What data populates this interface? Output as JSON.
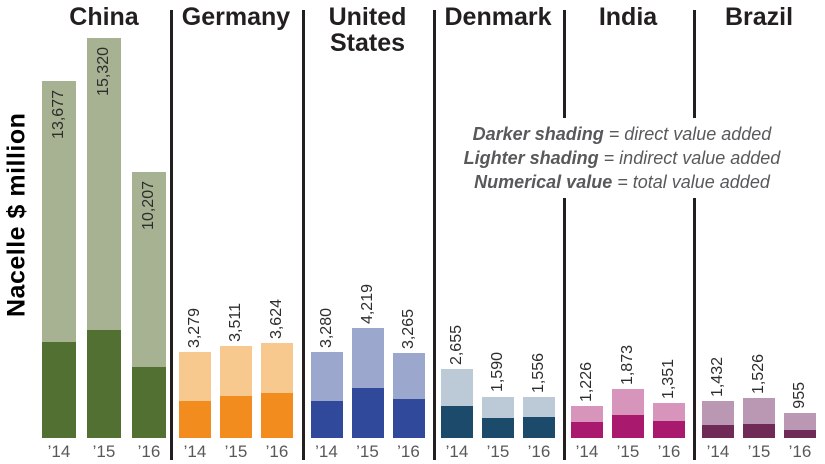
{
  "y_axis_label": "Nacelle $ million",
  "legend": {
    "lines": [
      {
        "term": "Darker shading",
        "rest": " = direct value added"
      },
      {
        "term": "Lighter shading",
        "rest": " = indirect value added"
      },
      {
        "term": "Numerical value",
        "rest": " = total value added"
      }
    ]
  },
  "chart_data": {
    "type": "bar",
    "stacked": true,
    "unit": "$ million",
    "ylabel": "Nacelle $ million",
    "ylim": [
      0,
      15320
    ],
    "grid": false,
    "years": [
      "’14",
      "’15",
      "’16"
    ],
    "segment_meaning": {
      "dark": "direct value added",
      "light": "indirect value added",
      "label": "total value added"
    },
    "groups": [
      {
        "country": "China",
        "dark_color": "#527032",
        "light_color": "#A6B292",
        "totals": [
          13677,
          15320,
          10207
        ],
        "total_labels": [
          "13,677",
          "15,320",
          "10,207"
        ],
        "direct_values_est": [
          3680,
          4140,
          2720
        ]
      },
      {
        "country": "Germany",
        "dark_color": "#F28C1E",
        "light_color": "#F8C98F",
        "totals": [
          3279,
          3511,
          3624
        ],
        "total_labels": [
          "3,279",
          "3,511",
          "3,624"
        ],
        "direct_values_est": [
          1420,
          1610,
          1720
        ]
      },
      {
        "country": "United States",
        "dark_color": "#30499A",
        "light_color": "#9BA7CC",
        "totals": [
          3280,
          4219,
          3265
        ],
        "total_labels": [
          "3,280",
          "4,219",
          "3,265"
        ],
        "direct_values_est": [
          1420,
          1915,
          1495
        ]
      },
      {
        "country": "Denmark",
        "dark_color": "#1B4A6B",
        "light_color": "#BCC9D6",
        "totals": [
          2655,
          1590,
          1556
        ],
        "total_labels": [
          "2,655",
          "1,590",
          "1,556"
        ],
        "direct_values_est": [
          1225,
          765,
          805
        ]
      },
      {
        "country": "India",
        "dark_color": "#A91A6F",
        "light_color": "#D795BC",
        "totals": [
          1226,
          1873,
          1351
        ],
        "total_labels": [
          "1,226",
          "1,873",
          "1,351"
        ],
        "direct_values_est": [
          615,
          880,
          650
        ]
      },
      {
        "country": "Brazil",
        "dark_color": "#6F2A58",
        "light_color": "#BA97B2",
        "totals": [
          1432,
          1526,
          955
        ],
        "total_labels": [
          "1,432",
          "1,526",
          "955"
        ],
        "direct_values_est": [
          500,
          535,
          305
        ]
      }
    ]
  }
}
